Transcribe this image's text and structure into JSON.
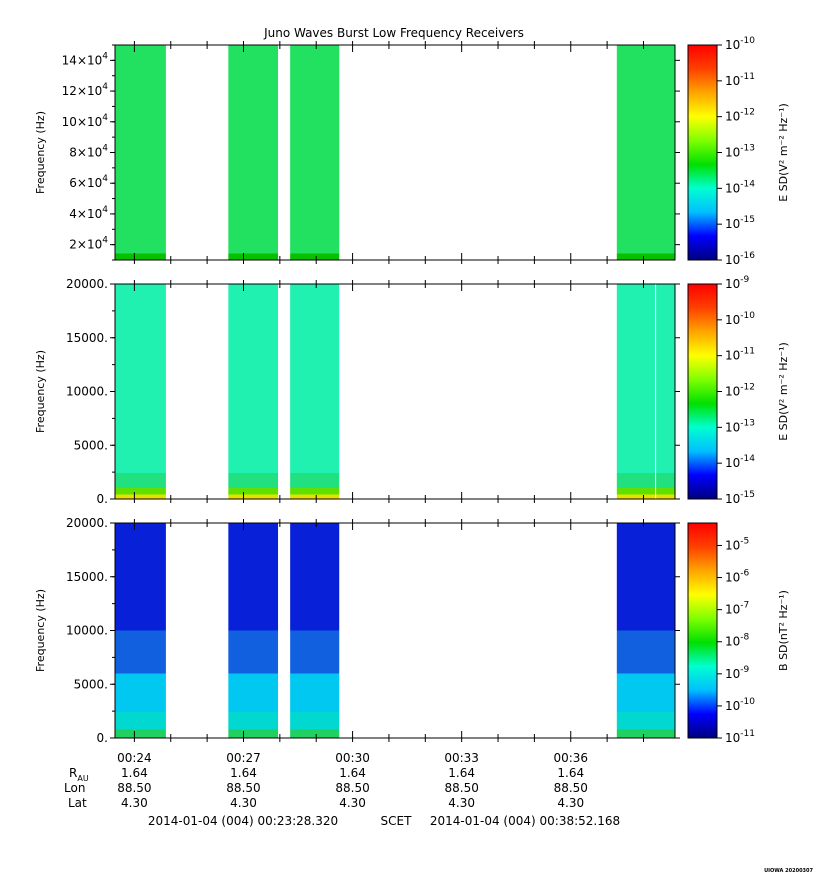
{
  "title": "Juno Waves Burst Low Frequency Receivers",
  "footer_label": "UIOWA 20200307",
  "chart_data": [
    {
      "type": "heatmap",
      "panel": "top",
      "ylabel": "Frequency (Hz)",
      "ylim": [
        10000,
        150000
      ],
      "yticks": [
        {
          "value": 20000,
          "mantissa": "2×10",
          "exp": "4"
        },
        {
          "value": 40000,
          "mantissa": "4×10",
          "exp": "4"
        },
        {
          "value": 60000,
          "mantissa": "6×10",
          "exp": "4"
        },
        {
          "value": 80000,
          "mantissa": "8×10",
          "exp": "4"
        },
        {
          "value": 100000,
          "mantissa": "10×10",
          "exp": "4"
        },
        {
          "value": 120000,
          "mantissa": "12×10",
          "exp": "4"
        },
        {
          "value": 140000,
          "mantissa": "14×10",
          "exp": "4"
        }
      ],
      "colorbar_label": "E SD(V² m⁻² Hz⁻¹)",
      "colorbar_range_exp": [
        -16,
        -10
      ],
      "colorbar_ticks": [
        {
          "base": "10",
          "exp": "-16"
        },
        {
          "base": "10",
          "exp": "-15"
        },
        {
          "base": "10",
          "exp": "-14"
        },
        {
          "base": "10",
          "exp": "-13"
        },
        {
          "base": "10",
          "exp": "-12"
        },
        {
          "base": "10",
          "exp": "-11"
        },
        {
          "base": "10",
          "exp": "-10"
        }
      ],
      "bands": [
        {
          "color": "#08c000",
          "upto": 0.03
        },
        {
          "color": "#22e060",
          "upto": 1.0
        }
      ]
    },
    {
      "type": "heatmap",
      "panel": "middle",
      "ylabel": "Frequency (Hz)",
      "ylim": [
        0,
        20000
      ],
      "yticks": [
        {
          "value": 0,
          "label": "0."
        },
        {
          "value": 5000,
          "label": "5000."
        },
        {
          "value": 10000,
          "label": "10000."
        },
        {
          "value": 15000,
          "label": "15000."
        },
        {
          "value": 20000,
          "label": "20000."
        }
      ],
      "colorbar_label": "E SD(V² m⁻² Hz⁻¹)",
      "colorbar_range_exp": [
        -15,
        -9
      ],
      "colorbar_ticks": [
        {
          "base": "10",
          "exp": "-15"
        },
        {
          "base": "10",
          "exp": "-14"
        },
        {
          "base": "10",
          "exp": "-13"
        },
        {
          "base": "10",
          "exp": "-12"
        },
        {
          "base": "10",
          "exp": "-11"
        },
        {
          "base": "10",
          "exp": "-10"
        },
        {
          "base": "10",
          "exp": "-9"
        }
      ],
      "bands": [
        {
          "color": "#e8e000",
          "upto": 0.02
        },
        {
          "color": "#60e000",
          "upto": 0.05
        },
        {
          "color": "#20e080",
          "upto": 0.12
        },
        {
          "color": "#20f0b0",
          "upto": 1.0
        }
      ]
    },
    {
      "type": "heatmap",
      "panel": "bottom",
      "ylabel": "Frequency (Hz)",
      "ylim": [
        0,
        20000
      ],
      "yticks": [
        {
          "value": 0,
          "label": "0."
        },
        {
          "value": 5000,
          "label": "5000."
        },
        {
          "value": 10000,
          "label": "10000."
        },
        {
          "value": 15000,
          "label": "15000."
        },
        {
          "value": 20000,
          "label": "20000."
        }
      ],
      "colorbar_label": "B SD(nT² Hz⁻¹)",
      "colorbar_range_exp": [
        -11,
        -4.3
      ],
      "colorbar_ticks": [
        {
          "base": "10",
          "exp": "-11"
        },
        {
          "base": "10",
          "exp": "-10"
        },
        {
          "base": "10",
          "exp": "-9"
        },
        {
          "base": "10",
          "exp": "-8"
        },
        {
          "base": "10",
          "exp": "-7"
        },
        {
          "base": "10",
          "exp": "-6"
        },
        {
          "base": "10",
          "exp": "-5"
        }
      ],
      "bands": [
        {
          "color": "#20d060",
          "upto": 0.04
        },
        {
          "color": "#00d8d0",
          "upto": 0.12
        },
        {
          "color": "#00c8f0",
          "upto": 0.3
        },
        {
          "color": "#1060e0",
          "upto": 0.5
        },
        {
          "color": "#0820d8",
          "upto": 1.0
        }
      ]
    }
  ],
  "time_axis": {
    "range": [
      "00:23:28",
      "00:38:52"
    ],
    "tick_minutes": [
      24,
      27,
      30,
      33,
      36
    ],
    "tick_labels": [
      "00:24",
      "00:27",
      "00:30",
      "00:33",
      "00:36"
    ],
    "segments": [
      [
        "00:23:28",
        "00:24:52"
      ],
      [
        "00:26:35",
        "00:27:57"
      ],
      [
        "00:28:17",
        "00:29:38"
      ],
      [
        "00:37:16",
        "00:38:52"
      ]
    ],
    "gap_line": "00:38:20"
  },
  "ephemeris": {
    "row_labels": [
      "R",
      "AU",
      "Lon",
      "Lat"
    ],
    "r_values": [
      "1.64",
      "1.64",
      "1.64",
      "1.64",
      "1.64"
    ],
    "lon_values": [
      "88.50",
      "88.50",
      "88.50",
      "88.50",
      "88.50"
    ],
    "lat_values": [
      "4.30",
      "4.30",
      "4.30",
      "4.30",
      "4.30"
    ]
  },
  "time_range": {
    "start": "2014-01-04 (004) 00:23:28.320",
    "label": "SCET",
    "end": "2014-01-04 (004) 00:38:52.168"
  },
  "colormap": [
    "#00007f",
    "#0000ff",
    "#00bfff",
    "#00ffd0",
    "#00e000",
    "#7fff00",
    "#ffff00",
    "#ffa500",
    "#ff4000",
    "#ff0000"
  ]
}
